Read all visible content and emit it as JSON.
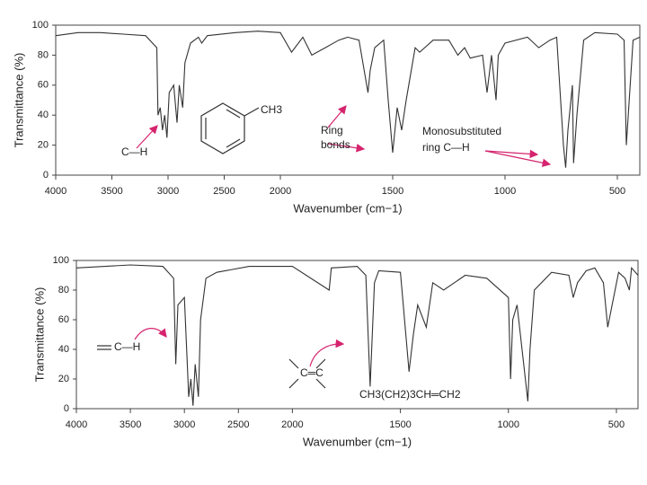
{
  "chart_data": [
    {
      "type": "line",
      "x_label": "Wavenumber (cm−1)",
      "y_label": "Transmittance (%)",
      "xlim": [
        4000,
        400
      ],
      "x_break": 2000,
      "ylim": [
        0,
        100
      ],
      "xticks": [
        4000,
        3500,
        3000,
        2500,
        2000,
        1500,
        1000,
        500
      ],
      "yticks": [
        0,
        20,
        40,
        60,
        80,
        100
      ],
      "color": "#333333",
      "x": [
        4000,
        3800,
        3600,
        3400,
        3200,
        3100,
        3090,
        3070,
        3050,
        3030,
        3010,
        2990,
        2950,
        2920,
        2900,
        2870,
        2850,
        2800,
        2730,
        2700,
        2650,
        2400,
        2200,
        2000,
        1950,
        1900,
        1860,
        1800,
        1740,
        1700,
        1650,
        1610,
        1600,
        1580,
        1540,
        1520,
        1500,
        1480,
        1460,
        1440,
        1400,
        1380,
        1320,
        1250,
        1210,
        1180,
        1155,
        1100,
        1080,
        1060,
        1040,
        1030,
        1000,
        900,
        850,
        800,
        770,
        740,
        730,
        720,
        700,
        695,
        680,
        650,
        600,
        500,
        470,
        460,
        430,
        400
      ],
      "values": [
        93,
        95,
        95,
        94,
        93,
        85,
        40,
        45,
        30,
        40,
        25,
        55,
        60,
        35,
        60,
        45,
        75,
        88,
        92,
        88,
        93,
        95,
        96,
        95,
        82,
        92,
        80,
        85,
        90,
        92,
        90,
        55,
        70,
        85,
        90,
        50,
        15,
        45,
        30,
        50,
        85,
        82,
        90,
        90,
        80,
        85,
        78,
        80,
        55,
        80,
        50,
        80,
        88,
        92,
        85,
        90,
        92,
        20,
        5,
        30,
        60,
        8,
        40,
        90,
        95,
        94,
        90,
        20,
        90,
        92
      ],
      "annotations": [
        "C—H",
        "CH3",
        "Ring",
        "bonds",
        "Monosubstituted",
        "ring C—H"
      ]
    },
    {
      "type": "line",
      "x_label": "Wavenumber (cm−1)",
      "y_label": "Transmittance (%)",
      "xlim": [
        4000,
        400
      ],
      "x_break": 2000,
      "ylim": [
        0,
        100
      ],
      "xticks": [
        4000,
        3500,
        3000,
        2500,
        2000,
        1500,
        1000,
        500
      ],
      "yticks": [
        0,
        20,
        40,
        60,
        80,
        100
      ],
      "color": "#333333",
      "x": [
        4000,
        3500,
        3200,
        3100,
        3080,
        3060,
        3000,
        2960,
        2940,
        2920,
        2900,
        2870,
        2850,
        2800,
        2700,
        2400,
        2000,
        1830,
        1820,
        1700,
        1660,
        1640,
        1620,
        1600,
        1500,
        1460,
        1440,
        1420,
        1380,
        1350,
        1300,
        1200,
        1100,
        1000,
        990,
        980,
        960,
        910,
        900,
        880,
        800,
        720,
        700,
        680,
        640,
        600,
        560,
        540,
        520,
        490,
        460,
        440,
        430,
        400
      ],
      "values": [
        95,
        97,
        96,
        88,
        30,
        70,
        75,
        8,
        20,
        2,
        30,
        8,
        60,
        88,
        92,
        96,
        96,
        80,
        95,
        96,
        90,
        15,
        85,
        93,
        92,
        25,
        50,
        70,
        55,
        85,
        80,
        90,
        88,
        75,
        20,
        60,
        70,
        5,
        40,
        80,
        92,
        90,
        75,
        85,
        93,
        95,
        85,
        55,
        70,
        92,
        88,
        80,
        95,
        90
      ],
      "annotations": [
        "C—H",
        "C═C",
        "CH3(CH2)3CH═CH2"
      ]
    }
  ]
}
